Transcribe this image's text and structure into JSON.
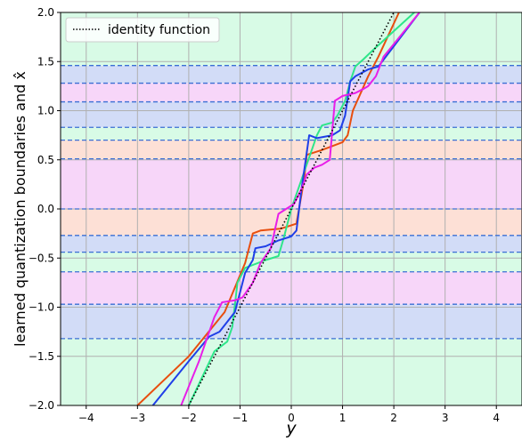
{
  "chart_data": {
    "type": "line",
    "xlabel": "y",
    "ylabel": "learned quantization boundaries and x̂",
    "xlim": [
      -4.5,
      4.5
    ],
    "ylim": [
      -2.0,
      2.0
    ],
    "x_ticks": [
      -4,
      -3,
      -2,
      -1,
      0,
      1,
      2,
      3,
      4
    ],
    "y_ticks": [
      -2.0,
      -1.5,
      -1.0,
      -0.5,
      0.0,
      0.5,
      1.0,
      1.5,
      2.0
    ],
    "x_tick_labels": [
      "−4",
      "−3",
      "−2",
      "−1",
      "0",
      "1",
      "2",
      "3",
      "4"
    ],
    "y_tick_labels": [
      "−2.0",
      "−1.5",
      "−1.0",
      "−0.5",
      "0.0",
      "0.5",
      "1.0",
      "1.5",
      "2.0"
    ],
    "grid": true,
    "legend_placement": "top-left",
    "legend_entries": [
      {
        "label": "identity function",
        "style": "dotted",
        "color": "#000000"
      }
    ],
    "quantization_boundaries": [
      -1.32,
      -0.97,
      -0.64,
      -0.44,
      -0.27,
      0.0,
      0.51,
      0.7,
      0.83,
      1.09,
      1.28,
      1.46
    ],
    "boundary_color": "#3b6fd4",
    "bands": [
      {
        "from": -2.0,
        "to": -1.32,
        "color": "#d8fbe6"
      },
      {
        "from": -1.32,
        "to": -0.97,
        "color": "#d2dcf7"
      },
      {
        "from": -0.97,
        "to": -0.64,
        "color": "#f7d6f9"
      },
      {
        "from": -0.64,
        "to": -0.44,
        "color": "#d8fbe6"
      },
      {
        "from": -0.44,
        "to": -0.27,
        "color": "#d2dcf7"
      },
      {
        "from": -0.27,
        "to": 0.0,
        "color": "#fde0d6"
      },
      {
        "from": 0.0,
        "to": 0.51,
        "color": "#f7d6f9"
      },
      {
        "from": 0.51,
        "to": 0.7,
        "color": "#fde0d6"
      },
      {
        "from": 0.7,
        "to": 0.83,
        "color": "#d8fbe6"
      },
      {
        "from": 0.83,
        "to": 1.09,
        "color": "#d2dcf7"
      },
      {
        "from": 1.09,
        "to": 1.28,
        "color": "#f7d6f9"
      },
      {
        "from": 1.28,
        "to": 1.46,
        "color": "#d2dcf7"
      },
      {
        "from": 1.46,
        "to": 2.0,
        "color": "#d8fbe6"
      }
    ],
    "series": [
      {
        "color": "#e84e0f",
        "dashed": false,
        "points": [
          [
            -3.0,
            -2.0
          ],
          [
            -2.0,
            -1.5
          ],
          [
            -1.3,
            -1.05
          ],
          [
            -0.9,
            -0.55
          ],
          [
            -0.75,
            -0.25
          ],
          [
            -0.6,
            -0.22
          ],
          [
            -0.2,
            -0.2
          ],
          [
            0.1,
            -0.15
          ],
          [
            0.25,
            0.3
          ],
          [
            0.3,
            0.55
          ],
          [
            0.6,
            0.6
          ],
          [
            1.0,
            0.68
          ],
          [
            1.1,
            0.75
          ],
          [
            1.2,
            1.0
          ],
          [
            1.5,
            1.35
          ],
          [
            1.7,
            1.55
          ],
          [
            2.1,
            2.0
          ]
        ]
      },
      {
        "color": "#2ee68a",
        "dashed": false,
        "points": [
          [
            -2.0,
            -2.0
          ],
          [
            -1.5,
            -1.45
          ],
          [
            -1.25,
            -1.35
          ],
          [
            -1.15,
            -1.2
          ],
          [
            -1.05,
            -0.75
          ],
          [
            -0.9,
            -0.6
          ],
          [
            -0.5,
            -0.52
          ],
          [
            -0.25,
            -0.48
          ],
          [
            -0.15,
            -0.3
          ],
          [
            0.0,
            0.0
          ],
          [
            0.2,
            0.3
          ],
          [
            0.4,
            0.6
          ],
          [
            0.5,
            0.75
          ],
          [
            0.6,
            0.85
          ],
          [
            0.8,
            0.88
          ],
          [
            0.9,
            0.95
          ],
          [
            1.05,
            1.1
          ],
          [
            1.15,
            1.3
          ],
          [
            1.25,
            1.45
          ],
          [
            1.4,
            1.52
          ],
          [
            1.6,
            1.62
          ],
          [
            2.4,
            2.0
          ]
        ]
      },
      {
        "color": "#1f3fe8",
        "dashed": false,
        "points": [
          [
            -2.7,
            -2.0
          ],
          [
            -2.0,
            -1.55
          ],
          [
            -1.6,
            -1.3
          ],
          [
            -1.4,
            -1.25
          ],
          [
            -1.1,
            -1.05
          ],
          [
            -0.9,
            -0.65
          ],
          [
            -0.75,
            -0.52
          ],
          [
            -0.7,
            -0.4
          ],
          [
            -0.5,
            -0.38
          ],
          [
            -0.25,
            -0.32
          ],
          [
            0.0,
            -0.28
          ],
          [
            0.1,
            -0.22
          ],
          [
            0.2,
            0.2
          ],
          [
            0.35,
            0.75
          ],
          [
            0.5,
            0.72
          ],
          [
            0.8,
            0.75
          ],
          [
            0.95,
            0.8
          ],
          [
            1.05,
            0.95
          ],
          [
            1.15,
            1.3
          ],
          [
            1.25,
            1.35
          ],
          [
            1.5,
            1.42
          ],
          [
            1.7,
            1.45
          ],
          [
            2.5,
            2.0
          ]
        ]
      },
      {
        "color": "#e81fe8",
        "dashed": false,
        "points": [
          [
            -2.15,
            -2.0
          ],
          [
            -1.8,
            -1.55
          ],
          [
            -1.5,
            -1.1
          ],
          [
            -1.35,
            -0.95
          ],
          [
            -1.1,
            -0.93
          ],
          [
            -0.95,
            -0.9
          ],
          [
            -0.75,
            -0.75
          ],
          [
            -0.6,
            -0.55
          ],
          [
            -0.4,
            -0.4
          ],
          [
            -0.25,
            -0.05
          ],
          [
            -0.1,
            0.0
          ],
          [
            0.05,
            0.05
          ],
          [
            0.2,
            0.2
          ],
          [
            0.3,
            0.35
          ],
          [
            0.45,
            0.42
          ],
          [
            0.6,
            0.45
          ],
          [
            0.75,
            0.5
          ],
          [
            0.85,
            1.1
          ],
          [
            1.0,
            1.15
          ],
          [
            1.25,
            1.18
          ],
          [
            1.4,
            1.22
          ],
          [
            1.5,
            1.25
          ],
          [
            1.65,
            1.35
          ],
          [
            1.8,
            1.55
          ],
          [
            2.5,
            2.0
          ]
        ]
      },
      {
        "color": "#000000",
        "dashed": true,
        "points": [
          [
            -2.0,
            -2.0
          ],
          [
            2.0,
            2.0
          ]
        ]
      }
    ]
  }
}
